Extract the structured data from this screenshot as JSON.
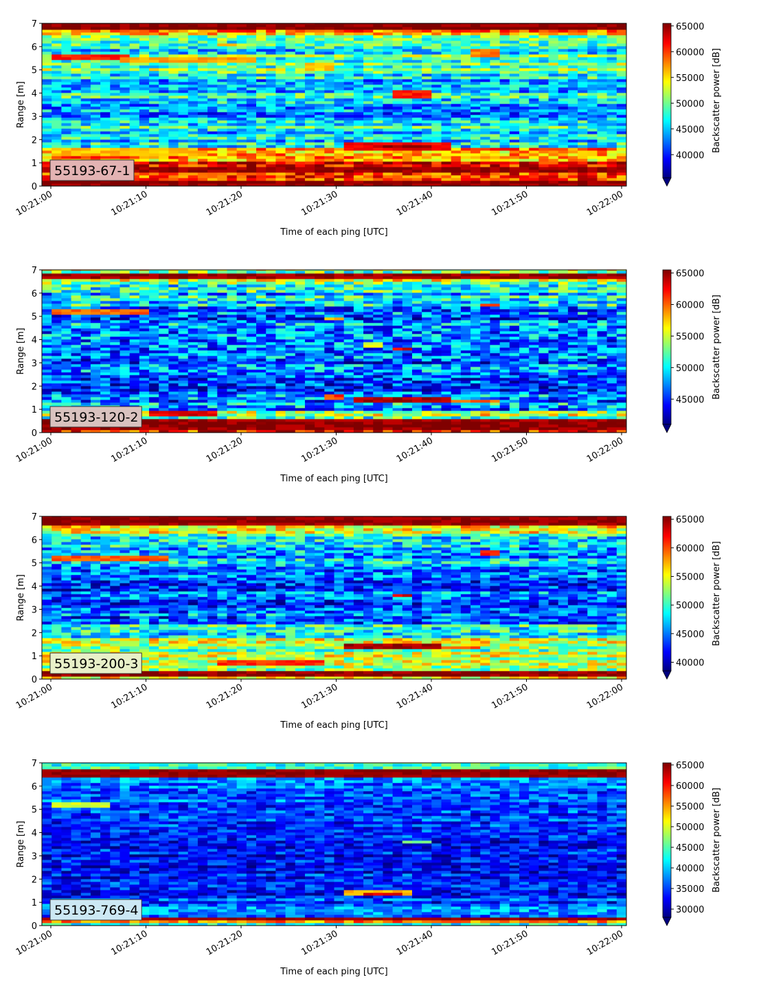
{
  "chart_data": [
    {
      "type": "heatmap",
      "label": "55193-67-1",
      "label_bg": "#e3b3b3",
      "xlabel": "Time of each ping [UTC]",
      "ylabel": "Range [m]",
      "colorbar_label": "Backscatter power [dB]",
      "colormap": "jet",
      "x_start": "10:21:00",
      "x_end": "10:22:00",
      "xticks": [
        "10:21:00",
        "10:21:10",
        "10:21:20",
        "10:21:30",
        "10:21:40",
        "10:21:50",
        "10:22:00"
      ],
      "ylim": [
        0,
        7
      ],
      "yticks": [
        "0",
        "1",
        "2",
        "3",
        "4",
        "5",
        "6",
        "7"
      ],
      "clim": [
        35500,
        65500
      ],
      "cticks": [
        "40000",
        "45000",
        "50000",
        "55000",
        "60000",
        "65000"
      ],
      "bands": [
        {
          "r": [
            0.0,
            0.25
          ],
          "v": 65500
        },
        {
          "r": [
            0.25,
            0.55
          ],
          "v": 62000
        },
        {
          "r": [
            0.55,
            0.85
          ],
          "v": 65000
        },
        {
          "r": [
            0.85,
            1.1
          ],
          "v": 62000
        },
        {
          "r": [
            1.1,
            1.6
          ],
          "v": 56000
        },
        {
          "r": [
            1.6,
            2.0
          ],
          "v": 46500
        },
        {
          "r": [
            2.0,
            2.5
          ],
          "v": 45000
        },
        {
          "r": [
            2.5,
            3.0
          ],
          "v": 47000
        },
        {
          "r": [
            3.0,
            3.5
          ],
          "v": 44000
        },
        {
          "r": [
            3.5,
            4.0
          ],
          "v": 46000
        },
        {
          "r": [
            4.0,
            4.6
          ],
          "v": 44000
        },
        {
          "r": [
            4.6,
            5.0
          ],
          "v": 47000
        },
        {
          "r": [
            5.0,
            5.7
          ],
          "v": 49000
        },
        {
          "r": [
            5.7,
            6.1
          ],
          "v": 47000
        },
        {
          "r": [
            6.1,
            6.5
          ],
          "v": 50000
        },
        {
          "r": [
            6.5,
            6.7
          ],
          "v": 58000
        },
        {
          "r": [
            6.7,
            7.0
          ],
          "v": 65500
        }
      ],
      "features": [
        {
          "t": [
            0,
            15
          ],
          "r": [
            1.3,
            1.6
          ],
          "v": 56000
        },
        {
          "t": [
            31,
            42
          ],
          "r": [
            1.55,
            1.85
          ],
          "v": 62000
        },
        {
          "t": [
            34,
            40
          ],
          "r": [
            1.6,
            1.8
          ],
          "v": 64500
        },
        {
          "t": [
            0,
            8
          ],
          "r": [
            5.4,
            5.7
          ],
          "v": 61000
        },
        {
          "t": [
            7,
            22
          ],
          "r": [
            5.3,
            5.6
          ],
          "v": 57000
        },
        {
          "t": [
            27,
            30
          ],
          "r": [
            5.0,
            5.3
          ],
          "v": 56000
        },
        {
          "t": [
            36,
            40
          ],
          "r": [
            3.8,
            4.1
          ],
          "v": 61000
        },
        {
          "t": [
            44,
            47
          ],
          "r": [
            5.6,
            5.9
          ],
          "v": 58000
        },
        {
          "t": [
            17,
            20
          ],
          "r": [
            6.0,
            6.2
          ],
          "v": 56000
        }
      ]
    },
    {
      "type": "heatmap",
      "label": "55193-120-2",
      "label_bg": "#d9c2bf",
      "xlabel": "Time of each ping [UTC]",
      "ylabel": "Range [m]",
      "colorbar_label": "Backscatter power [dB]",
      "colormap": "jet",
      "x_start": "10:21:00",
      "x_end": "10:22:00",
      "xticks": [
        "10:21:00",
        "10:21:10",
        "10:21:20",
        "10:21:30",
        "10:21:40",
        "10:21:50",
        "10:22:00"
      ],
      "ylim": [
        0,
        7
      ],
      "yticks": [
        "0",
        "1",
        "2",
        "3",
        "4",
        "5",
        "6",
        "7"
      ],
      "clim": [
        41000,
        65500
      ],
      "cticks": [
        "45000",
        "50000",
        "55000",
        "60000",
        "65000"
      ],
      "bands": [
        {
          "r": [
            0.0,
            0.15
          ],
          "v": 62000
        },
        {
          "r": [
            0.15,
            0.55
          ],
          "v": 65500
        },
        {
          "r": [
            0.55,
            0.9
          ],
          "v": 54000
        },
        {
          "r": [
            0.9,
            1.6
          ],
          "v": 48000
        },
        {
          "r": [
            1.6,
            2.0
          ],
          "v": 46000
        },
        {
          "r": [
            2.0,
            2.6
          ],
          "v": 47500
        },
        {
          "r": [
            2.6,
            3.5
          ],
          "v": 46500
        },
        {
          "r": [
            3.5,
            4.5
          ],
          "v": 45500
        },
        {
          "r": [
            4.5,
            5.3
          ],
          "v": 47000
        },
        {
          "r": [
            5.3,
            6.0
          ],
          "v": 48500
        },
        {
          "r": [
            6.0,
            6.4
          ],
          "v": 50500
        },
        {
          "r": [
            6.4,
            6.6
          ],
          "v": 54000
        },
        {
          "r": [
            6.6,
            6.9
          ],
          "v": 65500
        },
        {
          "r": [
            6.9,
            7.0
          ],
          "v": 55000
        }
      ],
      "features": [
        {
          "t": [
            10,
            17
          ],
          "r": [
            0.7,
            0.9
          ],
          "v": 63000
        },
        {
          "t": [
            32,
            42
          ],
          "r": [
            1.35,
            1.55
          ],
          "v": 64500
        },
        {
          "t": [
            42,
            47
          ],
          "r": [
            1.25,
            1.4
          ],
          "v": 60000
        },
        {
          "t": [
            29,
            31
          ],
          "r": [
            1.45,
            1.65
          ],
          "v": 61000
        },
        {
          "t": [
            60,
            61
          ],
          "r": [
            1.45,
            1.65
          ],
          "v": 62000
        },
        {
          "t": [
            0,
            10
          ],
          "r": [
            5.1,
            5.35
          ],
          "v": 60000
        },
        {
          "t": [
            36,
            38
          ],
          "r": [
            3.5,
            3.7
          ],
          "v": 63000
        },
        {
          "t": [
            33,
            35
          ],
          "r": [
            3.7,
            3.9
          ],
          "v": 56000
        },
        {
          "t": [
            45,
            47
          ],
          "r": [
            5.4,
            5.6
          ],
          "v": 62000
        },
        {
          "t": [
            29,
            31
          ],
          "r": [
            4.8,
            5.0
          ],
          "v": 58000
        }
      ]
    },
    {
      "type": "heatmap",
      "label": "55193-200-3",
      "label_bg": "#e8f0c8",
      "xlabel": "Time of each ping [UTC]",
      "ylabel": "Range [m]",
      "colorbar_label": "Backscatter power [dB]",
      "colormap": "jet",
      "x_start": "10:21:00",
      "x_end": "10:22:00",
      "xticks": [
        "10:21:00",
        "10:21:10",
        "10:21:20",
        "10:21:30",
        "10:21:40",
        "10:21:50",
        "10:22:00"
      ],
      "ylim": [
        0,
        7
      ],
      "yticks": [
        "0",
        "1",
        "2",
        "3",
        "4",
        "5",
        "6",
        "7"
      ],
      "clim": [
        38500,
        65500
      ],
      "cticks": [
        "40000",
        "45000",
        "50000",
        "55000",
        "60000",
        "65000"
      ],
      "bands": [
        {
          "r": [
            0.0,
            0.1
          ],
          "v": 57000
        },
        {
          "r": [
            0.1,
            0.35
          ],
          "v": 65500
        },
        {
          "r": [
            0.35,
            0.6
          ],
          "v": 51000
        },
        {
          "r": [
            0.6,
            0.9
          ],
          "v": 55000
        },
        {
          "r": [
            0.9,
            1.4
          ],
          "v": 52000
        },
        {
          "r": [
            1.4,
            1.8
          ],
          "v": 55000
        },
        {
          "r": [
            1.8,
            2.4
          ],
          "v": 50000
        },
        {
          "r": [
            2.4,
            3.2
          ],
          "v": 45000
        },
        {
          "r": [
            3.2,
            4.0
          ],
          "v": 44000
        },
        {
          "r": [
            4.0,
            5.0
          ],
          "v": 45000
        },
        {
          "r": [
            5.0,
            5.8
          ],
          "v": 46500
        },
        {
          "r": [
            5.8,
            6.3
          ],
          "v": 48000
        },
        {
          "r": [
            6.3,
            6.6
          ],
          "v": 56000
        },
        {
          "r": [
            6.6,
            7.0
          ],
          "v": 65500
        }
      ],
      "features": [
        {
          "t": [
            17,
            29
          ],
          "r": [
            0.6,
            0.85
          ],
          "v": 61000
        },
        {
          "t": [
            31,
            41
          ],
          "r": [
            1.3,
            1.5
          ],
          "v": 64500
        },
        {
          "t": [
            41,
            45
          ],
          "r": [
            1.3,
            1.45
          ],
          "v": 60000
        },
        {
          "t": [
            0,
            12
          ],
          "r": [
            5.1,
            5.35
          ],
          "v": 60000
        },
        {
          "t": [
            36,
            38
          ],
          "r": [
            3.5,
            3.7
          ],
          "v": 63000
        },
        {
          "t": [
            45,
            47
          ],
          "r": [
            5.35,
            5.55
          ],
          "v": 62000
        }
      ]
    },
    {
      "type": "heatmap",
      "label": "55193-769-4",
      "label_bg": "#cce8f4",
      "xlabel": "Time of each ping [UTC]",
      "ylabel": "Range [m]",
      "colorbar_label": "Backscatter power [dB]",
      "colormap": "jet",
      "x_start": "10:21:00",
      "x_end": "10:22:00",
      "xticks": [
        "10:21:00",
        "10:21:10",
        "10:21:20",
        "10:21:30",
        "10:21:40",
        "10:21:50",
        "10:22:00"
      ],
      "ylim": [
        0,
        7
      ],
      "yticks": [
        "0",
        "1",
        "2",
        "3",
        "4",
        "5",
        "6",
        "7"
      ],
      "clim": [
        28000,
        65500
      ],
      "cticks": [
        "30000",
        "35000",
        "40000",
        "45000",
        "50000",
        "55000",
        "60000",
        "65000"
      ],
      "bands": [
        {
          "r": [
            0.0,
            0.1
          ],
          "v": 40000
        },
        {
          "r": [
            0.1,
            0.25
          ],
          "v": 56000
        },
        {
          "r": [
            0.25,
            0.35
          ],
          "v": 65500
        },
        {
          "r": [
            0.35,
            1.0
          ],
          "v": 38500
        },
        {
          "r": [
            1.0,
            2.0
          ],
          "v": 34000
        },
        {
          "r": [
            2.0,
            4.5
          ],
          "v": 33000
        },
        {
          "r": [
            4.5,
            5.8
          ],
          "v": 35000
        },
        {
          "r": [
            5.8,
            6.4
          ],
          "v": 38000
        },
        {
          "r": [
            6.4,
            6.7
          ],
          "v": 65500
        },
        {
          "r": [
            6.7,
            7.0
          ],
          "v": 44000
        }
      ],
      "features": [
        {
          "t": [
            31,
            38
          ],
          "r": [
            1.3,
            1.5
          ],
          "v": 54000
        },
        {
          "t": [
            33,
            37
          ],
          "r": [
            1.25,
            1.45
          ],
          "v": 62000
        },
        {
          "t": [
            0,
            6
          ],
          "r": [
            5.1,
            5.3
          ],
          "v": 50000
        },
        {
          "t": [
            37,
            40
          ],
          "r": [
            3.5,
            3.7
          ],
          "v": 46000
        },
        {
          "t": [
            0,
            12
          ],
          "r": [
            0.5,
            0.8
          ],
          "v": 42000
        }
      ]
    }
  ]
}
